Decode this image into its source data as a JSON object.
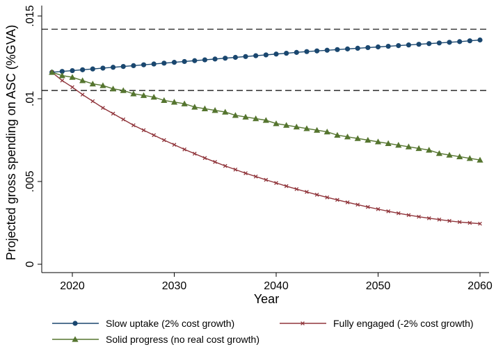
{
  "chart_data": {
    "type": "line",
    "xlabel": "Year",
    "ylabel": "Projected gross spending on ASC (%GVA)",
    "xlim": [
      2017.5,
      2060.5
    ],
    "ylim": [
      0,
      0.015
    ],
    "x_ticks": [
      2020,
      2030,
      2040,
      2050,
      2060
    ],
    "x_tick_labels": [
      "2020",
      "2030",
      "2040",
      "2050",
      "2060"
    ],
    "y_ticks": [
      0,
      0.005,
      0.01,
      0.015
    ],
    "y_tick_labels": [
      "0",
      ".005",
      ".01",
      ".015"
    ],
    "reference_lines": [
      0.0142,
      0.0105
    ],
    "grid": false,
    "legend_position": "bottom",
    "x": [
      2018,
      2019,
      2020,
      2021,
      2022,
      2023,
      2024,
      2025,
      2026,
      2027,
      2028,
      2029,
      2030,
      2031,
      2032,
      2033,
      2034,
      2035,
      2036,
      2037,
      2038,
      2039,
      2040,
      2041,
      2042,
      2043,
      2044,
      2045,
      2046,
      2047,
      2048,
      2049,
      2050,
      2051,
      2052,
      2053,
      2054,
      2055,
      2056,
      2057,
      2058,
      2059,
      2060
    ],
    "series": [
      {
        "name": "Slow uptake (2% cost growth)",
        "color": "#1a476f",
        "marker": "circle",
        "values": [
          0.0116,
          0.01165,
          0.0117,
          0.01175,
          0.0118,
          0.01185,
          0.0119,
          0.01195,
          0.012,
          0.01205,
          0.0121,
          0.01215,
          0.0122,
          0.01225,
          0.0123,
          0.01235,
          0.0124,
          0.01245,
          0.0125,
          0.01255,
          0.0126,
          0.01265,
          0.0127,
          0.01275,
          0.0128,
          0.01285,
          0.01289,
          0.01293,
          0.01297,
          0.01301,
          0.01305,
          0.01309,
          0.01313,
          0.01317,
          0.01321,
          0.01325,
          0.01329,
          0.01333,
          0.01337,
          0.01341,
          0.01345,
          0.0135,
          0.01355
        ]
      },
      {
        "name": "Fully engaged (-2% cost growth)",
        "color": "#90353b",
        "marker": "x",
        "values": [
          0.0116,
          0.0111,
          0.0107,
          0.01025,
          0.00985,
          0.00945,
          0.0091,
          0.00875,
          0.0084,
          0.0081,
          0.0078,
          0.0075,
          0.00722,
          0.00694,
          0.00668,
          0.00642,
          0.00618,
          0.00594,
          0.00572,
          0.0055,
          0.0053,
          0.0051,
          0.00491,
          0.00472,
          0.00454,
          0.00437,
          0.0042,
          0.00404,
          0.00389,
          0.00374,
          0.0036,
          0.00346,
          0.00333,
          0.0032,
          0.00308,
          0.00297,
          0.00287,
          0.00278,
          0.0027,
          0.00262,
          0.00255,
          0.0025,
          0.00245
        ]
      },
      {
        "name": "Solid progress (no real cost growth)",
        "color": "#55752f",
        "marker": "triangle",
        "values": [
          0.0116,
          0.0114,
          0.0113,
          0.0111,
          0.0109,
          0.0108,
          0.0106,
          0.0105,
          0.0103,
          0.0102,
          0.0101,
          0.0099,
          0.0098,
          0.0097,
          0.0095,
          0.0094,
          0.0093,
          0.0092,
          0.009,
          0.0089,
          0.0088,
          0.0087,
          0.0085,
          0.0084,
          0.0083,
          0.0082,
          0.0081,
          0.008,
          0.0078,
          0.0077,
          0.0076,
          0.0075,
          0.0074,
          0.0073,
          0.0072,
          0.0071,
          0.007,
          0.0069,
          0.0067,
          0.0066,
          0.0065,
          0.0064,
          0.0063
        ]
      }
    ],
    "legend_entries": [
      {
        "series": 0,
        "label": "Slow uptake (2% cost growth)"
      },
      {
        "series": 1,
        "label": "Fully engaged (-2% cost growth)"
      },
      {
        "series": 2,
        "label": "Solid progress (no real cost growth)"
      }
    ]
  }
}
